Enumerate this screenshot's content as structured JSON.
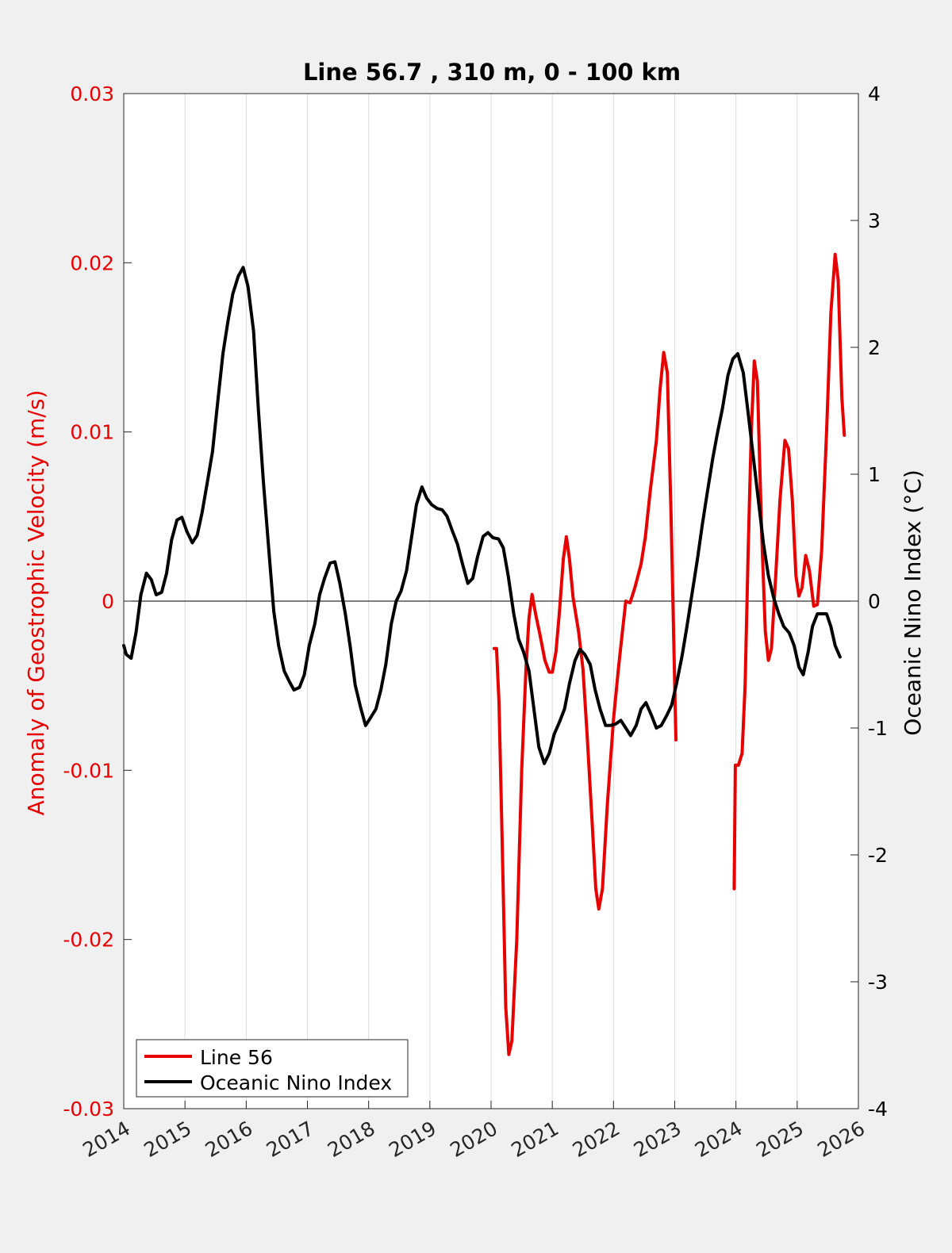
{
  "chart_data": {
    "type": "line",
    "title": "Line 56.7 , 310 m, 0 - 100 km",
    "xlabel": "",
    "ylabel_left": "Anomaly of Geostrophic Velocity (m/s)",
    "ylabel_right": "Oceanic Nino Index (°C)",
    "xlim": [
      2014,
      2026
    ],
    "ylim_left": [
      -0.03,
      0.03
    ],
    "ylim_right": [
      -4,
      4
    ],
    "x_ticks": [
      2014,
      2015,
      2016,
      2017,
      2018,
      2019,
      2020,
      2021,
      2022,
      2023,
      2024,
      2025,
      2026
    ],
    "x_tick_labels": [
      "2014",
      "2015",
      "2016",
      "2017",
      "2018",
      "2019",
      "2020",
      "2021",
      "2022",
      "2023",
      "2024",
      "2025",
      "2026"
    ],
    "y_left_ticks": [
      -0.03,
      -0.02,
      -0.01,
      0,
      0.01,
      0.02,
      0.03
    ],
    "y_left_tick_labels": [
      "-0.03",
      "-0.02",
      "-0.01",
      "0",
      "0.01",
      "0.02",
      "0.03"
    ],
    "y_right_ticks": [
      -4,
      -3,
      -2,
      -1,
      0,
      1,
      2,
      3,
      4
    ],
    "y_right_tick_labels": [
      "-4",
      "-3",
      "-2",
      "-1",
      "0",
      "1",
      "2",
      "3",
      "4"
    ],
    "grid": "vertical",
    "zero_line": true,
    "legend_position": "bottom-left",
    "colors": {
      "line56": "#e60000",
      "oni": "#000000",
      "left_axis": "#e60000",
      "right_axis": "#000000"
    },
    "series": [
      {
        "name": "Line 56",
        "axis": "left",
        "color": "#e60000",
        "segments": [
          [
            [
              2020.05,
              -0.0028
            ],
            [
              2020.09,
              -0.0028
            ],
            [
              2020.13,
              -0.006
            ],
            [
              2020.18,
              -0.014
            ],
            [
              2020.24,
              -0.024
            ],
            [
              2020.29,
              -0.0268
            ],
            [
              2020.34,
              -0.026
            ],
            [
              2020.42,
              -0.02
            ],
            [
              2020.5,
              -0.01
            ],
            [
              2020.57,
              -0.004
            ],
            [
              2020.62,
              -0.001
            ],
            [
              2020.67,
              0.0004
            ],
            [
              2020.73,
              -0.0008
            ],
            [
              2020.8,
              -0.002
            ],
            [
              2020.88,
              -0.0035
            ],
            [
              2020.95,
              -0.0042
            ],
            [
              2021.0,
              -0.0042
            ],
            [
              2021.06,
              -0.003
            ],
            [
              2021.12,
              -0.0005
            ],
            [
              2021.18,
              0.0025
            ],
            [
              2021.23,
              0.0038
            ],
            [
              2021.28,
              0.0025
            ],
            [
              2021.34,
              0.0002
            ],
            [
              2021.43,
              -0.0018
            ],
            [
              2021.5,
              -0.004
            ],
            [
              2021.57,
              -0.008
            ],
            [
              2021.65,
              -0.013
            ],
            [
              2021.71,
              -0.017
            ],
            [
              2021.76,
              -0.0182
            ],
            [
              2021.82,
              -0.017
            ],
            [
              2021.9,
              -0.012
            ],
            [
              2022.0,
              -0.007
            ],
            [
              2022.08,
              -0.004
            ],
            [
              2022.14,
              -0.002
            ],
            [
              2022.2,
              0.0
            ],
            [
              2022.27,
              -0.0001
            ],
            [
              2022.35,
              0.0008
            ],
            [
              2022.45,
              0.0022
            ],
            [
              2022.52,
              0.0038
            ],
            [
              2022.6,
              0.0065
            ],
            [
              2022.7,
              0.0095
            ],
            [
              2022.76,
              0.0125
            ],
            [
              2022.82,
              0.0147
            ],
            [
              2022.88,
              0.0135
            ],
            [
              2022.94,
              0.005
            ],
            [
              2023.02,
              -0.0082
            ]
          ],
          [
            [
              2023.97,
              -0.017
            ],
            [
              2023.99,
              -0.0097
            ],
            [
              2024.04,
              -0.0097
            ],
            [
              2024.1,
              -0.009
            ],
            [
              2024.15,
              -0.005
            ],
            [
              2024.2,
              0.003
            ],
            [
              2024.25,
              0.01
            ],
            [
              2024.3,
              0.0142
            ],
            [
              2024.35,
              0.013
            ],
            [
              2024.42,
              0.004
            ],
            [
              2024.48,
              -0.0018
            ],
            [
              2024.53,
              -0.0035
            ],
            [
              2024.58,
              -0.0028
            ],
            [
              2024.65,
              0.0015
            ],
            [
              2024.72,
              0.006
            ],
            [
              2024.8,
              0.0095
            ],
            [
              2024.86,
              0.009
            ],
            [
              2024.92,
              0.006
            ],
            [
              2024.98,
              0.0015
            ],
            [
              2025.03,
              0.0003
            ],
            [
              2025.08,
              0.0008
            ],
            [
              2025.14,
              0.0027
            ],
            [
              2025.2,
              0.0018
            ],
            [
              2025.27,
              -0.0003
            ],
            [
              2025.33,
              -0.0002
            ],
            [
              2025.4,
              0.003
            ],
            [
              2025.48,
              0.01
            ],
            [
              2025.55,
              0.017
            ],
            [
              2025.62,
              0.0205
            ],
            [
              2025.67,
              0.019
            ],
            [
              2025.73,
              0.012
            ],
            [
              2025.77,
              0.0098
            ]
          ]
        ]
      },
      {
        "name": "Oceanic Nino Index",
        "axis": "right",
        "color": "#000000",
        "segments": [
          [
            [
              2014.0,
              -0.35
            ],
            [
              2014.04,
              -0.42
            ],
            [
              2014.12,
              -0.45
            ],
            [
              2014.2,
              -0.25
            ],
            [
              2014.28,
              0.05
            ],
            [
              2014.37,
              0.22
            ],
            [
              2014.45,
              0.17
            ],
            [
              2014.53,
              0.05
            ],
            [
              2014.62,
              0.07
            ],
            [
              2014.7,
              0.22
            ],
            [
              2014.78,
              0.48
            ],
            [
              2014.87,
              0.64
            ],
            [
              2014.95,
              0.66
            ],
            [
              2015.03,
              0.55
            ],
            [
              2015.12,
              0.46
            ],
            [
              2015.2,
              0.52
            ],
            [
              2015.28,
              0.7
            ],
            [
              2015.37,
              0.95
            ],
            [
              2015.45,
              1.18
            ],
            [
              2015.53,
              1.55
            ],
            [
              2015.62,
              1.95
            ],
            [
              2015.7,
              2.2
            ],
            [
              2015.78,
              2.42
            ],
            [
              2015.87,
              2.56
            ],
            [
              2015.95,
              2.63
            ],
            [
              2016.03,
              2.48
            ],
            [
              2016.12,
              2.13
            ],
            [
              2016.2,
              1.5
            ],
            [
              2016.28,
              0.95
            ],
            [
              2016.37,
              0.4
            ],
            [
              2016.45,
              -0.08
            ],
            [
              2016.53,
              -0.35
            ],
            [
              2016.62,
              -0.55
            ],
            [
              2016.7,
              -0.63
            ],
            [
              2016.78,
              -0.7
            ],
            [
              2016.87,
              -0.68
            ],
            [
              2016.95,
              -0.58
            ],
            [
              2017.03,
              -0.35
            ],
            [
              2017.12,
              -0.18
            ],
            [
              2017.2,
              0.05
            ],
            [
              2017.28,
              0.18
            ],
            [
              2017.37,
              0.3
            ],
            [
              2017.45,
              0.31
            ],
            [
              2017.53,
              0.14
            ],
            [
              2017.62,
              -0.1
            ],
            [
              2017.7,
              -0.36
            ],
            [
              2017.78,
              -0.66
            ],
            [
              2017.87,
              -0.84
            ],
            [
              2017.95,
              -0.98
            ],
            [
              2018.03,
              -0.92
            ],
            [
              2018.12,
              -0.85
            ],
            [
              2018.2,
              -0.7
            ],
            [
              2018.28,
              -0.5
            ],
            [
              2018.37,
              -0.18
            ],
            [
              2018.45,
              0.0
            ],
            [
              2018.53,
              0.08
            ],
            [
              2018.62,
              0.24
            ],
            [
              2018.7,
              0.5
            ],
            [
              2018.78,
              0.76
            ],
            [
              2018.87,
              0.9
            ],
            [
              2018.95,
              0.81
            ],
            [
              2019.03,
              0.76
            ],
            [
              2019.12,
              0.73
            ],
            [
              2019.2,
              0.72
            ],
            [
              2019.28,
              0.67
            ],
            [
              2019.37,
              0.55
            ],
            [
              2019.45,
              0.45
            ],
            [
              2019.53,
              0.3
            ],
            [
              2019.62,
              0.14
            ],
            [
              2019.7,
              0.18
            ],
            [
              2019.78,
              0.35
            ],
            [
              2019.87,
              0.51
            ],
            [
              2019.95,
              0.54
            ],
            [
              2020.03,
              0.5
            ],
            [
              2020.12,
              0.49
            ],
            [
              2020.2,
              0.42
            ],
            [
              2020.28,
              0.2
            ],
            [
              2020.37,
              -0.1
            ],
            [
              2020.45,
              -0.3
            ],
            [
              2020.53,
              -0.4
            ],
            [
              2020.62,
              -0.55
            ],
            [
              2020.7,
              -0.85
            ],
            [
              2020.78,
              -1.15
            ],
            [
              2020.87,
              -1.28
            ],
            [
              2020.95,
              -1.2
            ],
            [
              2021.03,
              -1.05
            ],
            [
              2021.12,
              -0.95
            ],
            [
              2021.2,
              -0.85
            ],
            [
              2021.28,
              -0.65
            ],
            [
              2021.37,
              -0.47
            ],
            [
              2021.45,
              -0.38
            ],
            [
              2021.53,
              -0.42
            ],
            [
              2021.62,
              -0.5
            ],
            [
              2021.7,
              -0.7
            ],
            [
              2021.78,
              -0.85
            ],
            [
              2021.87,
              -0.98
            ],
            [
              2021.95,
              -0.98
            ],
            [
              2022.03,
              -0.97
            ],
            [
              2022.12,
              -0.94
            ],
            [
              2022.2,
              -1.0
            ],
            [
              2022.28,
              -1.06
            ],
            [
              2022.37,
              -0.98
            ],
            [
              2022.45,
              -0.85
            ],
            [
              2022.53,
              -0.8
            ],
            [
              2022.62,
              -0.9
            ],
            [
              2022.7,
              -1.0
            ],
            [
              2022.78,
              -0.98
            ],
            [
              2022.87,
              -0.9
            ],
            [
              2022.95,
              -0.82
            ],
            [
              2023.03,
              -0.65
            ],
            [
              2023.12,
              -0.43
            ],
            [
              2023.2,
              -0.2
            ],
            [
              2023.28,
              0.05
            ],
            [
              2023.37,
              0.33
            ],
            [
              2023.45,
              0.6
            ],
            [
              2023.53,
              0.85
            ],
            [
              2023.62,
              1.12
            ],
            [
              2023.7,
              1.33
            ],
            [
              2023.78,
              1.52
            ],
            [
              2023.87,
              1.78
            ],
            [
              2023.95,
              1.91
            ],
            [
              2024.03,
              1.95
            ],
            [
              2024.12,
              1.8
            ],
            [
              2024.2,
              1.48
            ],
            [
              2024.28,
              1.15
            ],
            [
              2024.37,
              0.78
            ],
            [
              2024.45,
              0.45
            ],
            [
              2024.53,
              0.2
            ],
            [
              2024.62,
              0.02
            ],
            [
              2024.7,
              -0.1
            ],
            [
              2024.78,
              -0.2
            ],
            [
              2024.87,
              -0.25
            ],
            [
              2024.95,
              -0.35
            ],
            [
              2025.03,
              -0.52
            ],
            [
              2025.1,
              -0.58
            ],
            [
              2025.18,
              -0.4
            ],
            [
              2025.25,
              -0.2
            ],
            [
              2025.33,
              -0.1
            ],
            [
              2025.4,
              -0.1
            ],
            [
              2025.48,
              -0.1
            ],
            [
              2025.55,
              -0.2
            ],
            [
              2025.62,
              -0.35
            ],
            [
              2025.7,
              -0.44
            ]
          ]
        ]
      }
    ]
  }
}
